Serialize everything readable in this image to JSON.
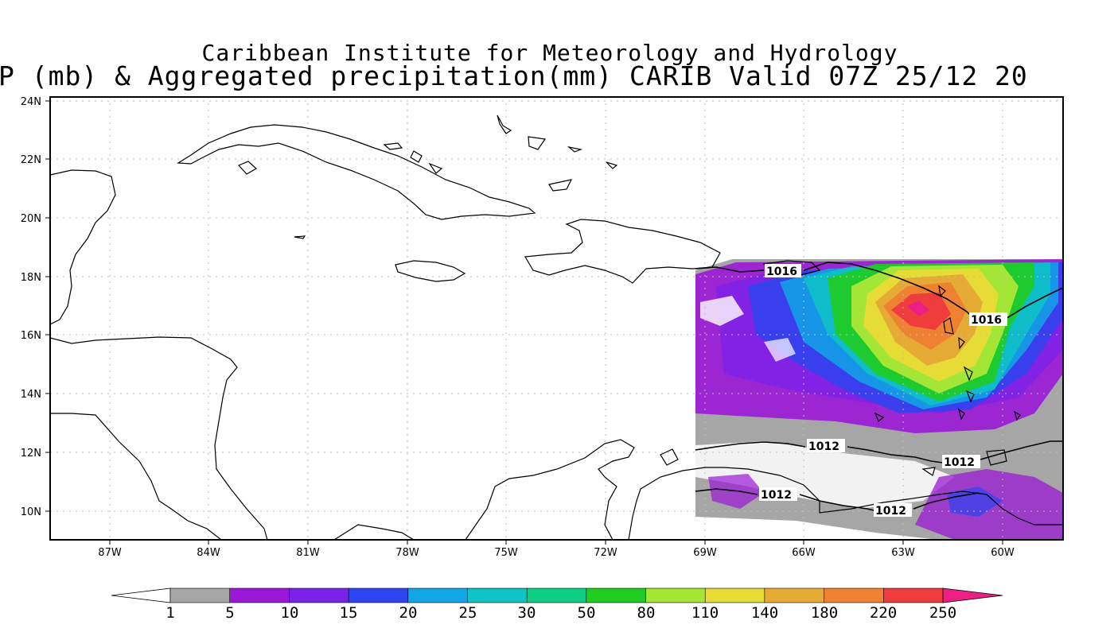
{
  "title": {
    "line1": "Caribbean Institute for Meteorology and Hydrology",
    "line2": "P (mb) & Aggregated precipitation(mm) CARIB Valid 07Z 25/12 20"
  },
  "map": {
    "lat_labels": [
      "24N",
      "22N",
      "20N",
      "18N",
      "16N",
      "14N",
      "12N",
      "10N"
    ],
    "lon_labels": [
      "87W",
      "84W",
      "81W",
      "78W",
      "75W",
      "72W",
      "69W",
      "66W",
      "63W",
      "60W"
    ],
    "isobar_labels": [
      "1016",
      "1016",
      "1012",
      "1012",
      "1012",
      "1012"
    ],
    "colors": {
      "gray": "#a6a6a6",
      "purple": "#9b18d6",
      "violet": "#7a22e8",
      "blue": "#2e44f0",
      "cyan": "#12a6e6",
      "teal": "#0ec4c4",
      "seagreen": "#0ecf86",
      "green": "#1fcc1f",
      "lime": "#a3e636",
      "yellow": "#e6dc35",
      "orange": "#e6ab35",
      "darkorange": "#ef8232",
      "red": "#ef3d3d",
      "magenta": "#ec1f85"
    }
  },
  "colorbar": {
    "labels": [
      "1",
      "5",
      "10",
      "15",
      "20",
      "25",
      "30",
      "50",
      "80",
      "110",
      "140",
      "180",
      "220",
      "250"
    ],
    "colors": [
      "#a6a6a6",
      "#9b18d6",
      "#7a22e8",
      "#2e44f0",
      "#12a6e6",
      "#0ec4c4",
      "#0ecf86",
      "#1fcc1f",
      "#a3e636",
      "#e6dc35",
      "#e6ab35",
      "#ef8232",
      "#ef3d3d"
    ],
    "low_end_color": "#ffffff",
    "high_end_color": "#ec1f85"
  }
}
